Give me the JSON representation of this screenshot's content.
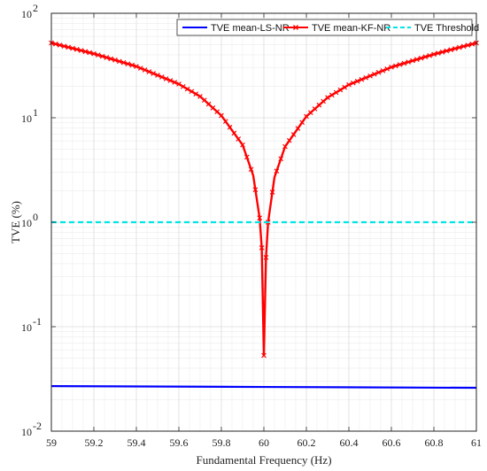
{
  "chart_data": {
    "type": "line",
    "xlabel": "Fundamental Frequency (Hz)",
    "ylabel": "TVE (%)",
    "yscale": "log",
    "xlim": [
      59,
      61
    ],
    "ylim": [
      0.01,
      100
    ],
    "grid": true,
    "minor_grid": true,
    "legend_position": "top-right",
    "x_ticks": [
      "59",
      "59.2",
      "59.4",
      "59.6",
      "59.8",
      "60",
      "60.2",
      "60.4",
      "60.6",
      "60.8",
      "61"
    ],
    "y_ticks": [
      {
        "base": "10",
        "exp": "-2",
        "value": 0.01
      },
      {
        "base": "10",
        "exp": "-1",
        "value": 0.1
      },
      {
        "base": "10",
        "exp": "0",
        "value": 1
      },
      {
        "base": "10",
        "exp": "1",
        "value": 10
      },
      {
        "base": "10",
        "exp": "2",
        "value": 100
      }
    ],
    "series": [
      {
        "name": "TVE mean-LS-NR",
        "color": "#0000ff",
        "style": "solid",
        "marker": "none",
        "x": [
          59,
          60,
          61
        ],
        "y": [
          0.027,
          0.0265,
          0.026
        ]
      },
      {
        "name": "TVE mean-KF-NR",
        "color": "#ff0000",
        "style": "solid",
        "marker": "x",
        "x": [
          59.0,
          59.2,
          59.4,
          59.6,
          59.7,
          59.8,
          59.9,
          59.95,
          59.98,
          59.99,
          60.0,
          60.01,
          60.02,
          60.05,
          60.1,
          60.2,
          60.3,
          60.4,
          60.6,
          60.8,
          61.0
        ],
        "y": [
          52,
          41,
          31,
          21,
          16,
          10.5,
          5.5,
          2.8,
          1.1,
          0.57,
          0.053,
          0.46,
          1.0,
          2.7,
          5.3,
          10.3,
          15.6,
          20.7,
          30.5,
          40.5,
          52
        ]
      },
      {
        "name": "TVE Threshold",
        "color": "#00e5e5",
        "style": "dashed",
        "marker": "none",
        "x": [
          59,
          61
        ],
        "y": [
          1,
          1
        ]
      }
    ]
  }
}
